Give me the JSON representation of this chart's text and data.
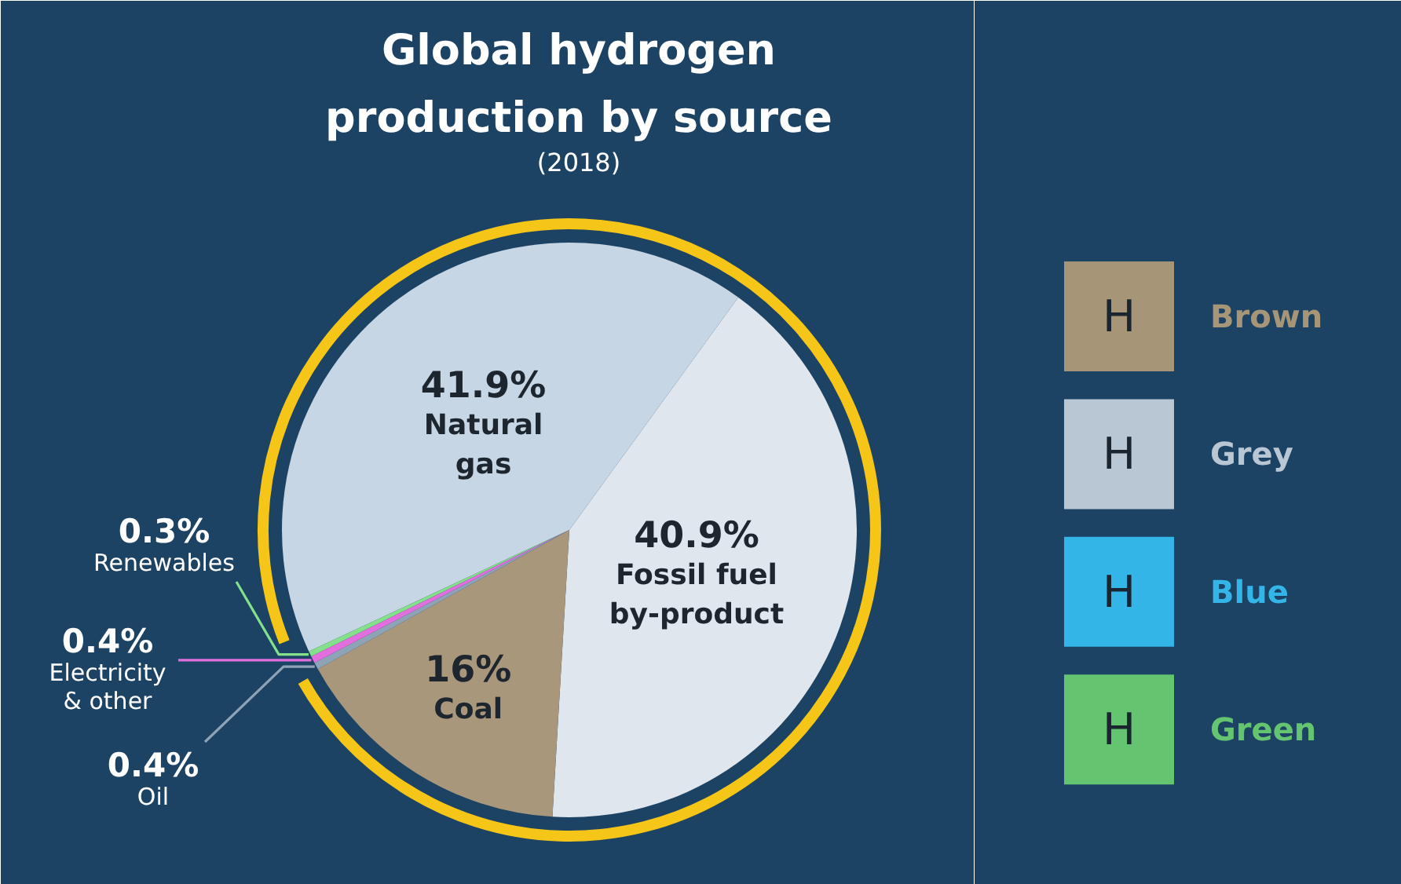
{
  "chart_data": [
    {
      "type": "pie",
      "title": "Global hydrogen production by source",
      "subtitle": "(2018)",
      "categories": [
        "Natural gas",
        "Fossil fuel by-product",
        "Coal",
        "Oil",
        "Electricity & other",
        "Renewables"
      ],
      "values": [
        41.9,
        40.9,
        16,
        0.4,
        0.4,
        0.3
      ],
      "value_labels": [
        "41.9%",
        "40.9%",
        "16%",
        "0.4%",
        "0.4%",
        "0.3%"
      ],
      "colors": [
        "#c7d6e4",
        "#dfe6ed",
        "#a8977a",
        "#8fa3b6",
        "#e36fdf",
        "#84e08a"
      ]
    },
    {
      "type": "other",
      "series": [
        {
          "name": "Brown",
          "color": "#a69677"
        },
        {
          "name": "Grey",
          "color": "#b9c7d5"
        },
        {
          "name": "Blue",
          "color": "#33b5e8"
        },
        {
          "name": "Green",
          "color": "#65c46f"
        }
      ],
      "annotations": [
        "H",
        "H",
        "H",
        "H"
      ]
    }
  ]
}
